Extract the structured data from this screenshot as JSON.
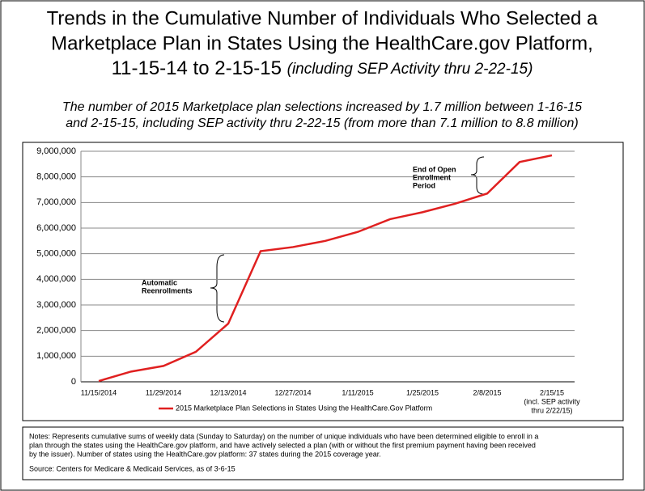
{
  "chart_data": {
    "type": "line",
    "title_lines": [
      "Trends in the Cumulative Number of Individuals Who Selected a",
      "Marketplace Plan in States Using the HealthCare.gov Platform,",
      "11-15-14 to 2-15-15"
    ],
    "title_italic": "(including SEP Activity thru 2-22-15)",
    "subtitle_lines": [
      "The number of 2015 Marketplace plan selections increased by 1.7 million between 1-16-15",
      "and 2-15-15, including SEP activity thru 2-22-15 (from more than 7.1 million to 8.8 million)"
    ],
    "categories": [
      "11/15/2014",
      null,
      "11/29/2014",
      null,
      "12/13/2014",
      null,
      "12/27/2014",
      null,
      "1/11/2015",
      null,
      "1/25/2015",
      null,
      "2/8/2015",
      null,
      "2/15/15"
    ],
    "x_note": [
      "(incl. SEP activity",
      "thru 2/22/15)"
    ],
    "series": [
      {
        "name": "2015 Marketplace Plan Selections in States Using the HealthCare.Gov Platform",
        "color": "#e02020",
        "values": [
          30000,
          400000,
          620000,
          1170000,
          2270000,
          5100000,
          5260000,
          5500000,
          5850000,
          6350000,
          6620000,
          6950000,
          7350000,
          8580000,
          8840000
        ]
      }
    ],
    "ylim": [
      0,
      9000000
    ],
    "yticks": [
      0,
      {
        "value": 1000000,
        "label": "1,000,000"
      },
      {
        "value": 2000000,
        "label": "2,000,000"
      },
      {
        "value": 3000000,
        "label": "3,000,000"
      },
      {
        "value": 4000000,
        "label": "4,000,000"
      },
      {
        "value": 5000000,
        "label": "5,000,000"
      },
      {
        "value": 6000000,
        "label": "6,000,000"
      },
      {
        "value": 7000000,
        "label": "7,000,000"
      },
      {
        "value": 8000000,
        "label": "8,000,000"
      },
      {
        "value": 9000000,
        "label": "9,000,000"
      }
    ],
    "grid": true,
    "annotations": [
      {
        "lines": [
          "Automatic",
          "Reenrollments"
        ]
      },
      {
        "lines": [
          "End of Open",
          "Enrollment",
          "Period"
        ]
      }
    ],
    "notes": [
      "Notes:  Represents cumulative sums of weekly data (Sunday to Saturday) on the number of unique individuals who have been determined eligible to enroll in a",
      "plan through the states using the HealthCare.gov platform, and have actively selected a plan (with or without the first premium payment having been received",
      "by the issuer).  Number of states using the HealthCare.gov platform:  37 states during the 2015 coverage year."
    ],
    "source": "Source:  Centers for Medicare & Medicaid Services, as of 3-6-15"
  }
}
